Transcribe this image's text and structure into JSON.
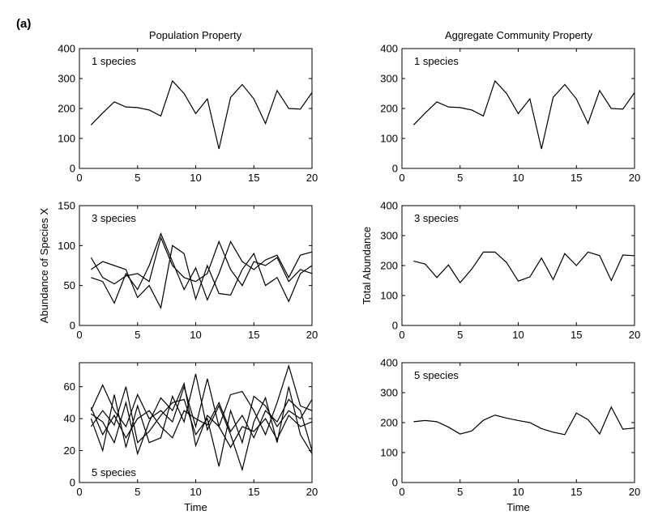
{
  "figure": {
    "panel_label": "(a)",
    "col_titles": [
      "Population Property",
      "Aggregate Community Property"
    ]
  },
  "chart_data": [
    {
      "type": "line",
      "annotation": "1 species",
      "xlabel": "",
      "ylabel": "",
      "xlim": [
        0,
        20
      ],
      "ylim": [
        0,
        400
      ],
      "xticks": [
        0,
        5,
        10,
        15,
        20
      ],
      "yticks": [
        0,
        100,
        200,
        300,
        400
      ],
      "annotation_position": "top-left",
      "grid": false,
      "x": [
        1,
        2,
        3,
        4,
        5,
        6,
        7,
        8,
        9,
        10,
        11,
        12,
        13,
        14,
        15,
        16,
        17,
        18,
        19,
        20
      ],
      "series": [
        {
          "values": [
            145,
            185,
            222,
            205,
            203,
            195,
            175,
            292,
            250,
            183,
            232,
            65,
            237,
            280,
            232,
            150,
            260,
            200,
            198,
            253
          ]
        }
      ]
    },
    {
      "type": "line",
      "annotation": "1 species",
      "xlabel": "",
      "ylabel": "",
      "xlim": [
        0,
        20
      ],
      "ylim": [
        0,
        400
      ],
      "xticks": [
        0,
        5,
        10,
        15,
        20
      ],
      "yticks": [
        0,
        100,
        200,
        300,
        400
      ],
      "annotation_position": "top-left",
      "grid": false,
      "x": [
        1,
        2,
        3,
        4,
        5,
        6,
        7,
        8,
        9,
        10,
        11,
        12,
        13,
        14,
        15,
        16,
        17,
        18,
        19,
        20
      ],
      "series": [
        {
          "values": [
            145,
            185,
            222,
            205,
            203,
            195,
            175,
            292,
            250,
            183,
            232,
            65,
            237,
            280,
            232,
            150,
            260,
            200,
            198,
            253
          ]
        }
      ]
    },
    {
      "type": "line",
      "annotation": "3 species",
      "xlabel": "",
      "ylabel": "Abundance of Species X",
      "xlim": [
        0,
        20
      ],
      "ylim": [
        0,
        150
      ],
      "xticks": [
        0,
        5,
        10,
        15,
        20
      ],
      "yticks": [
        0,
        50,
        100,
        150
      ],
      "annotation_position": "top-left",
      "grid": false,
      "x": [
        1,
        2,
        3,
        4,
        5,
        6,
        7,
        8,
        9,
        10,
        11,
        12,
        13,
        14,
        15,
        16,
        17,
        18,
        19,
        20
      ],
      "series": [
        {
          "values": [
            85,
            60,
            52,
            62,
            65,
            55,
            110,
            75,
            60,
            55,
            65,
            105,
            70,
            50,
            80,
            75,
            85,
            55,
            70,
            65
          ]
        },
        {
          "values": [
            70,
            80,
            75,
            70,
            35,
            50,
            22,
            100,
            90,
            33,
            75,
            40,
            38,
            70,
            90,
            50,
            60,
            30,
            65,
            75
          ]
        },
        {
          "values": [
            60,
            55,
            28,
            65,
            45,
            75,
            115,
            80,
            45,
            72,
            32,
            65,
            105,
            80,
            70,
            82,
            88,
            60,
            88,
            92
          ]
        }
      ]
    },
    {
      "type": "line",
      "annotation": "3 species",
      "xlabel": "",
      "ylabel": "Total Abundance",
      "xlim": [
        0,
        20
      ],
      "ylim": [
        0,
        400
      ],
      "xticks": [
        0,
        5,
        10,
        15,
        20
      ],
      "yticks": [
        0,
        100,
        200,
        300,
        400
      ],
      "annotation_position": "top-left",
      "grid": false,
      "x": [
        1,
        2,
        3,
        4,
        5,
        6,
        7,
        8,
        9,
        10,
        11,
        12,
        13,
        14,
        15,
        16,
        17,
        18,
        19,
        20
      ],
      "series": [
        {
          "values": [
            215,
            205,
            160,
            202,
            143,
            188,
            245,
            245,
            210,
            148,
            162,
            225,
            153,
            240,
            200,
            245,
            233,
            150,
            235,
            233
          ]
        }
      ]
    },
    {
      "type": "line",
      "annotation": "5 species",
      "xlabel": "Time",
      "ylabel": "",
      "xlim": [
        0,
        20
      ],
      "ylim": [
        0,
        75
      ],
      "xticks": [
        0,
        5,
        10,
        15,
        20
      ],
      "yticks": [
        0,
        20,
        40,
        60
      ],
      "annotation_position": "bottom-left",
      "grid": false,
      "x": [
        1,
        2,
        3,
        4,
        5,
        6,
        7,
        8,
        9,
        10,
        11,
        12,
        13,
        14,
        15,
        16,
        17,
        18,
        19,
        20
      ],
      "series": [
        {
          "values": [
            45,
            61,
            45,
            35,
            55,
            40,
            45,
            38,
            60,
            35,
            65,
            35,
            55,
            57,
            45,
            30,
            50,
            73,
            48,
            45
          ]
        },
        {
          "values": [
            35,
            45,
            36,
            60,
            25,
            32,
            42,
            50,
            52,
            30,
            40,
            10,
            45,
            25,
            54,
            48,
            35,
            45,
            40,
            52
          ]
        },
        {
          "values": [
            40,
            20,
            55,
            22,
            48,
            25,
            28,
            54,
            38,
            68,
            33,
            48,
            30,
            8,
            38,
            53,
            25,
            60,
            30,
            18
          ]
        },
        {
          "values": [
            43,
            38,
            25,
            50,
            18,
            38,
            53,
            45,
            62,
            23,
            42,
            35,
            22,
            35,
            32,
            40,
            27,
            42,
            35,
            38
          ]
        },
        {
          "values": [
            47,
            30,
            42,
            28,
            40,
            45,
            35,
            28,
            45,
            40,
            36,
            50,
            32,
            42,
            28,
            45,
            38,
            52,
            45,
            20
          ]
        }
      ]
    },
    {
      "type": "line",
      "annotation": "5 species",
      "xlabel": "Time",
      "ylabel": "",
      "xlim": [
        0,
        20
      ],
      "ylim": [
        0,
        400
      ],
      "xticks": [
        0,
        5,
        10,
        15,
        20
      ],
      "yticks": [
        0,
        100,
        200,
        300,
        400
      ],
      "annotation_position": "top-left",
      "grid": false,
      "x": [
        1,
        2,
        3,
        4,
        5,
        6,
        7,
        8,
        9,
        10,
        11,
        12,
        13,
        14,
        15,
        16,
        17,
        18,
        19,
        20
      ],
      "series": [
        {
          "values": [
            203,
            207,
            203,
            185,
            162,
            172,
            208,
            225,
            215,
            207,
            200,
            180,
            168,
            160,
            232,
            210,
            162,
            252,
            178,
            182
          ]
        }
      ]
    }
  ]
}
